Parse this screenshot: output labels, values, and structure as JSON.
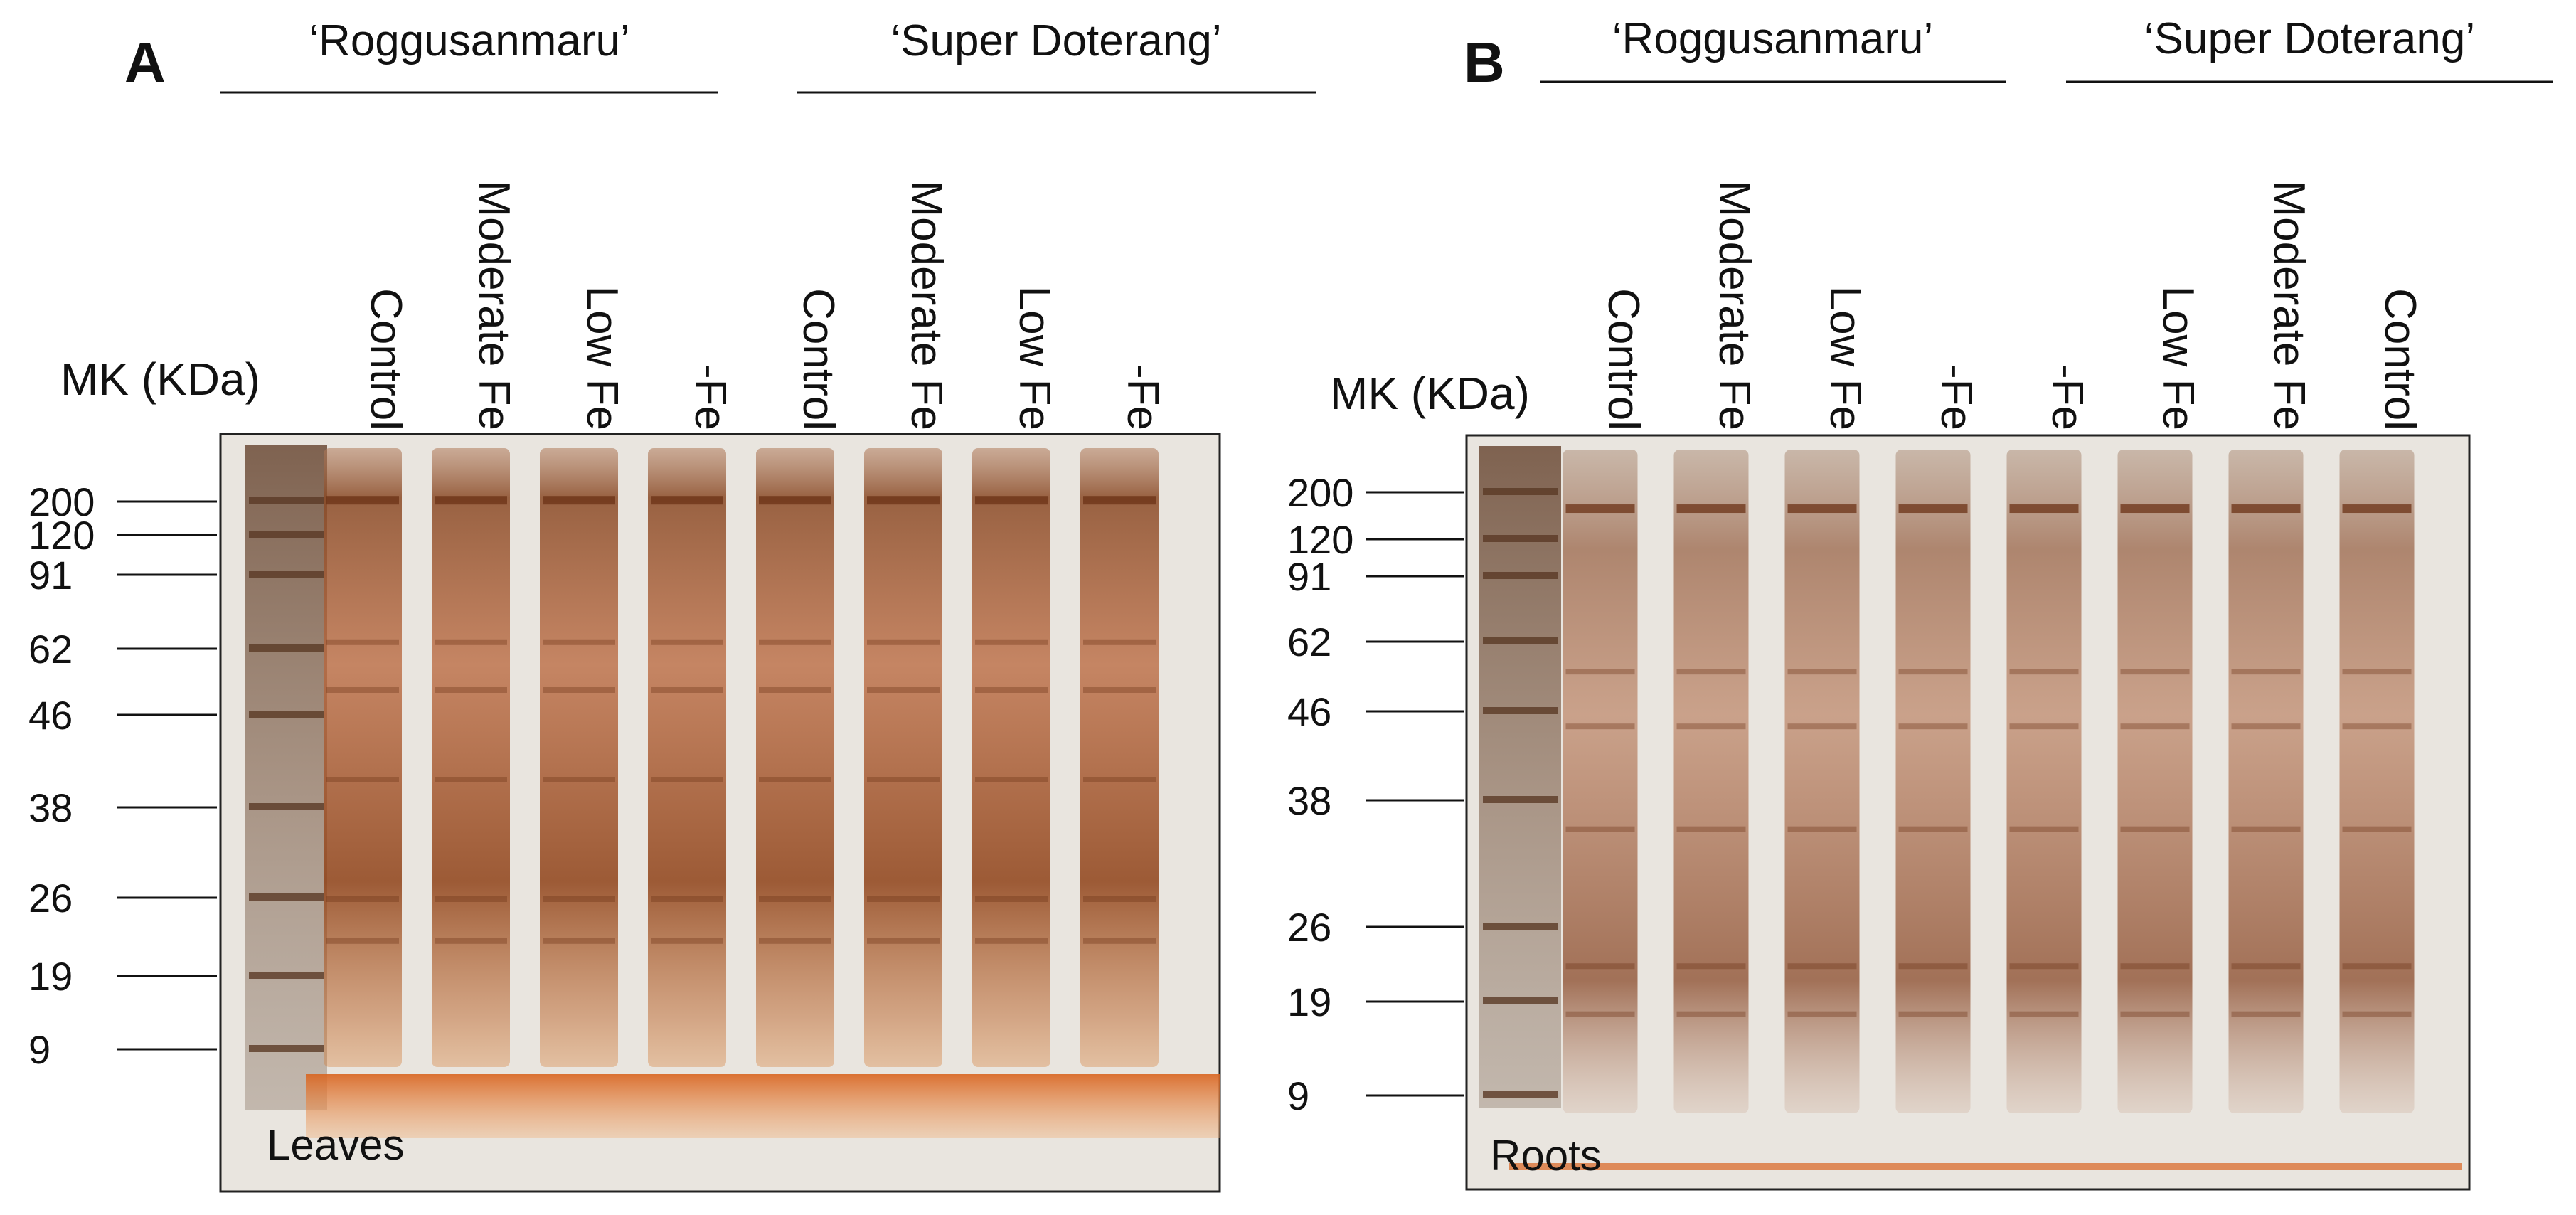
{
  "panels": [
    {
      "letter": "A",
      "tissue": "Leaves",
      "mk_label": "MK (KDa)",
      "markers": [
        "200",
        "120",
        "91",
        "62",
        "46",
        "38",
        "26",
        "19",
        "9"
      ],
      "groups": [
        "‘Roggusanmaru’",
        "‘Super Doterang’"
      ],
      "lanes": [
        "Control",
        "Moderate Fe",
        "Low Fe",
        "-Fe",
        "Control",
        "Moderate Fe",
        "Low Fe",
        "-Fe"
      ]
    },
    {
      "letter": "B",
      "tissue": "Roots",
      "mk_label": "MK (KDa)",
      "markers": [
        "200",
        "120",
        "91",
        "62",
        "46",
        "38",
        "26",
        "19",
        "9"
      ],
      "groups": [
        "‘Roggusanmaru’",
        "‘Super Doterang’"
      ],
      "lanes": [
        "Control",
        "Moderate Fe",
        "Low Fe",
        "-Fe",
        "-Fe",
        "Low Fe",
        "Moderate Fe",
        "Control"
      ]
    }
  ],
  "colors": {
    "gel_background": "#e9e5df",
    "stain_dark": "#6b3115",
    "stain_orange": "#d9641f",
    "marker_lane": "#5a3a26"
  }
}
